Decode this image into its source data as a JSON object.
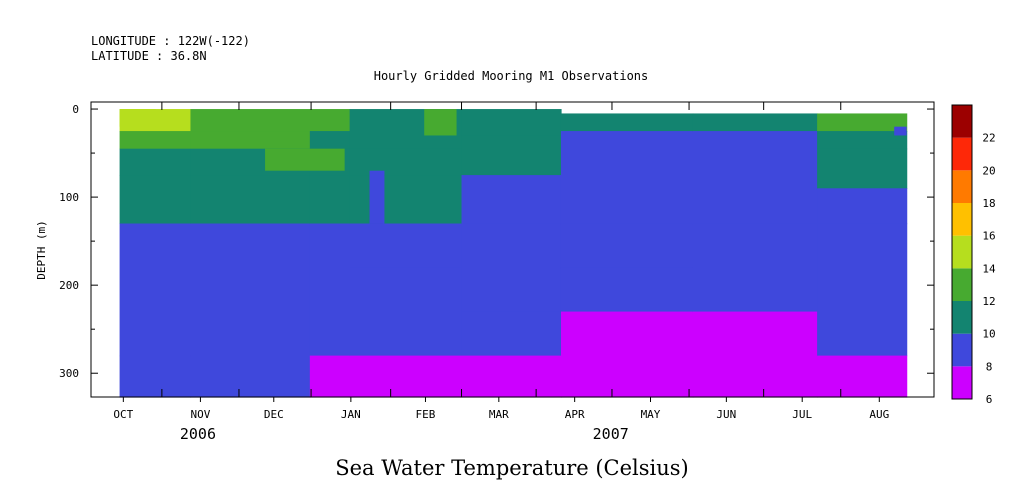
{
  "header": {
    "longitude": "LONGITUDE : 122W(-122)",
    "latitude": "LATITUDE : 36.8N",
    "subtitle": "Hourly Gridded Mooring M1 Observations"
  },
  "chart_data": {
    "type": "heatmap",
    "title": "Sea Water Temperature (Celsius)",
    "subtitle": "Hourly Gridded Mooring M1 Observations",
    "xlabel": "",
    "ylabel": "DEPTH (m)",
    "x_months": [
      "OCT",
      "NOV",
      "DEC",
      "JAN",
      "FEB",
      "MAR",
      "APR",
      "MAY",
      "JUN",
      "JUL",
      "AUG"
    ],
    "x_month_centers": [
      1,
      32,
      61.5,
      92.5,
      122.5,
      152,
      182.5,
      213,
      243.5,
      274,
      305
    ],
    "x_month_boundaries": [
      16.5,
      47.5,
      76.5,
      108.5,
      137,
      167,
      197.5,
      228.5,
      258.5,
      289.5
    ],
    "x_range_days": [
      -12,
      327
    ],
    "x_data_extent_days": [
      -0.5,
      316
    ],
    "years": [
      {
        "label": "2006",
        "center_day": 31
      },
      {
        "label": "2007",
        "center_day": 197
      }
    ],
    "yticks": [
      0,
      100,
      200,
      300
    ],
    "yminor": [
      50,
      150,
      250
    ],
    "ylim": [
      327,
      -8
    ],
    "depth_levels_m": [
      10,
      20,
      30,
      40,
      50,
      60,
      70,
      80,
      90,
      100,
      110,
      120,
      130,
      140,
      150,
      160,
      170,
      180,
      190,
      200,
      210,
      220,
      230,
      240,
      250,
      260,
      270,
      280,
      290,
      300,
      310,
      320
    ],
    "colorbar": {
      "levels": [
        6,
        8,
        10,
        12,
        14,
        16,
        18,
        20,
        22
      ],
      "colors": [
        "#cc00ff",
        "#3f48dc",
        "#138470",
        "#47aa30",
        "#b6de1e",
        "#ffc000",
        "#ff7a00",
        "#fe2808",
        "#9c0000"
      ]
    },
    "series": [
      {
        "days": [
          -0.5,
          28
        ],
        "intervals": [
          [
            0,
            25,
            15
          ],
          [
            25,
            45,
            13
          ],
          [
            45,
            75,
            11
          ],
          [
            75,
            130,
            11
          ],
          [
            130,
            280,
            9
          ],
          [
            280,
            327,
            9
          ]
        ]
      },
      {
        "days": [
          28,
          76
        ],
        "intervals": [
          [
            0,
            25,
            13
          ],
          [
            25,
            45,
            13
          ],
          [
            45,
            75,
            11
          ],
          [
            75,
            130,
            11
          ],
          [
            130,
            280,
            9
          ],
          [
            280,
            327,
            9
          ]
        ]
      },
      {
        "days": [
          76,
          92
        ],
        "intervals": [
          [
            0,
            25,
            13
          ],
          [
            25,
            45,
            11
          ],
          [
            45,
            75,
            11
          ],
          [
            75,
            130,
            11
          ],
          [
            130,
            280,
            9
          ],
          [
            280,
            327,
            7
          ]
        ]
      },
      {
        "days": [
          92,
          137
        ],
        "intervals": [
          [
            0,
            45,
            11
          ],
          [
            45,
            75,
            11
          ],
          [
            75,
            130,
            11
          ],
          [
            130,
            180,
            9
          ],
          [
            180,
            280,
            9
          ],
          [
            280,
            327,
            7
          ]
        ]
      },
      {
        "days": [
          137,
          177
        ],
        "intervals": [
          [
            0,
            30,
            11
          ],
          [
            30,
            75,
            11
          ],
          [
            75,
            130,
            9
          ],
          [
            130,
            230,
            9
          ],
          [
            230,
            280,
            9
          ],
          [
            280,
            327,
            7
          ]
        ]
      },
      {
        "days": [
          177,
          230
        ],
        "intervals": [
          [
            5,
            25,
            11
          ],
          [
            25,
            130,
            9
          ],
          [
            130,
            180,
            9
          ],
          [
            180,
            230,
            9
          ],
          [
            230,
            280,
            7
          ],
          [
            280,
            327,
            7
          ]
        ]
      },
      {
        "days": [
          230,
          280
        ],
        "intervals": [
          [
            5,
            25,
            11
          ],
          [
            25,
            130,
            9
          ],
          [
            130,
            230,
            9
          ],
          [
            230,
            280,
            7
          ],
          [
            280,
            327,
            7
          ]
        ]
      },
      {
        "days": [
          280,
          316
        ],
        "intervals": [
          [
            5,
            25,
            13
          ],
          [
            25,
            45,
            11
          ],
          [
            45,
            90,
            11
          ],
          [
            90,
            130,
            9
          ],
          [
            130,
            280,
            9
          ],
          [
            280,
            327,
            7
          ]
        ]
      }
    ],
    "patches": [
      {
        "days": [
          -0.5,
          14
        ],
        "depth": [
          0,
          20
        ],
        "temp": 15
      },
      {
        "days": [
          58,
          90
        ],
        "depth": [
          45,
          70
        ],
        "temp": 13
      },
      {
        "days": [
          122,
          135
        ],
        "depth": [
          0,
          30
        ],
        "temp": 13
      },
      {
        "days": [
          100,
          106
        ],
        "depth": [
          70,
          130
        ],
        "temp": 9
      },
      {
        "days": [
          311,
          316
        ],
        "depth": [
          20,
          30
        ],
        "temp": 9
      }
    ]
  }
}
